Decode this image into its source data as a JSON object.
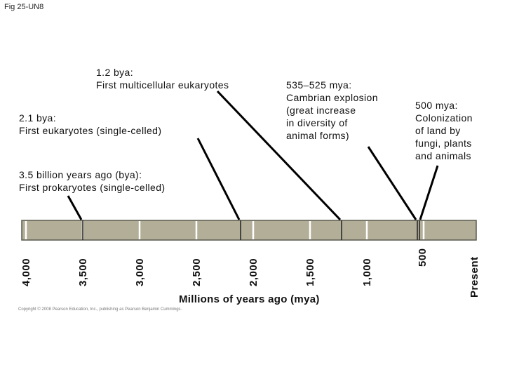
{
  "figure_label": "Fig 25-UN8",
  "events": [
    {
      "label": "3.5 billion years ago (bya):\nFirst prokaryotes (single-celled)"
    },
    {
      "label": "2.1 bya:\nFirst eukaryotes (single-celled)"
    },
    {
      "label": "1.2 bya:\nFirst multicellular eukaryotes"
    },
    {
      "label": "535–525 mya:\nCambrian explosion\n(great increase\nin diversity of\nanimal forms)"
    },
    {
      "label": "500 mya:\nColonization\nof land by\nfungi, plants\nand animals"
    }
  ],
  "axis": {
    "title": "Millions of years ago (mya)",
    "tick_labels": [
      "4,000",
      "3,500",
      "3,000",
      "2,500",
      "2,000",
      "1,500",
      "1,000",
      "500",
      "Present"
    ]
  },
  "copyright": "Copyright © 2008 Pearson Education, Inc., publishing as Pearson Benjamin Cummings.",
  "colors": {
    "bar_fill": "#b3ae98",
    "bar_stroke": "#5a5a50",
    "tick_color": "#ffffff",
    "event_marker": "#2a2a2a"
  }
}
